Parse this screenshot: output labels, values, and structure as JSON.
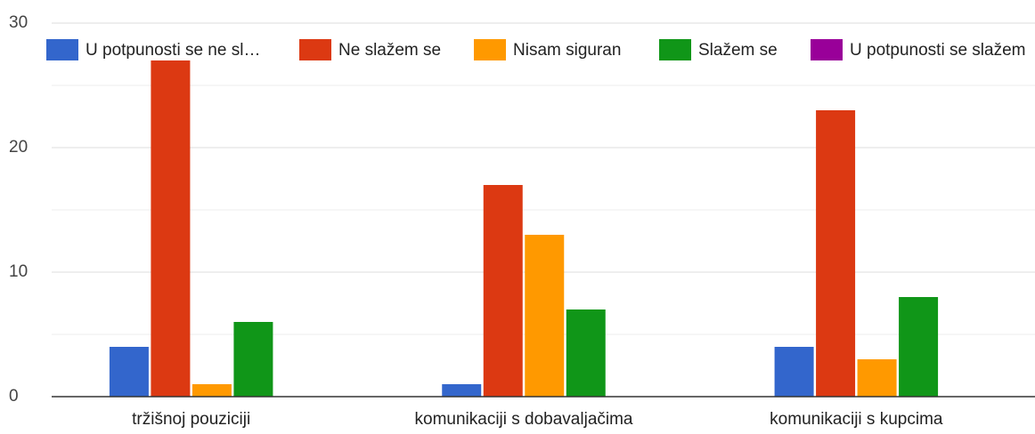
{
  "chart_data": {
    "type": "bar",
    "categories": [
      "tržišnoj pouziciji",
      "komunikaciji s dobavaljačima",
      "komunikaciji s kupcima"
    ],
    "series": [
      {
        "name": "U potpunosti se ne sl…",
        "color": "#3366cc",
        "values": [
          4,
          1,
          4
        ]
      },
      {
        "name": "Ne slažem se",
        "color": "#dc3912",
        "values": [
          27,
          17,
          23
        ]
      },
      {
        "name": "Nisam siguran",
        "color": "#ff9900",
        "values": [
          1,
          13,
          3
        ]
      },
      {
        "name": "Slažem se",
        "color": "#109618",
        "values": [
          6,
          7,
          8
        ]
      },
      {
        "name": "U potpunosti se slažem",
        "color": "#990099",
        "values": [
          0,
          0,
          0
        ]
      }
    ],
    "ylim": [
      0,
      30
    ],
    "yticks": [
      0,
      10,
      20,
      30
    ],
    "minor_yticks": [
      5,
      15,
      25
    ],
    "grid": true,
    "legend": "top"
  }
}
